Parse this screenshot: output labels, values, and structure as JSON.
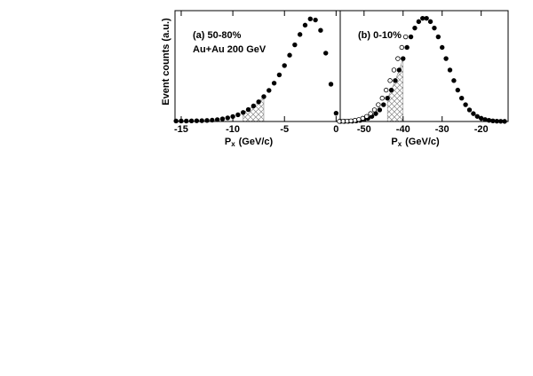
{
  "chart_data": [
    {
      "type": "scatter",
      "y_label": "Event counts (a.u.)",
      "annotations": [
        "(a) 50-80%",
        "Au+Au 200 GeV"
      ],
      "x_label": "P",
      "x_label_sub": "x",
      "x_label_unit": "(GeV/c)",
      "xlim": [
        -15.6,
        0.4
      ],
      "xticks": [
        -15,
        -10,
        -5,
        0
      ],
      "ylim": [
        0,
        1.07
      ],
      "shaded_xrange": [
        -9,
        -7
      ],
      "x": [
        -15.5,
        -15,
        -14.5,
        -14,
        -13.5,
        -13,
        -12.5,
        -12,
        -11.5,
        -11,
        -10.5,
        -10,
        -9.5,
        -9,
        -8.5,
        -8,
        -7.5,
        -7,
        -6.5,
        -6,
        -5.5,
        -5,
        -4.5,
        -4,
        -3.5,
        -3,
        -2.5,
        -2,
        -1.5,
        -1,
        -0.5,
        0
      ],
      "series": [
        {
          "color": "#000000",
          "marker": "filled",
          "values": [
            0.005,
            0.005,
            0.005,
            0.006,
            0.007,
            0.008,
            0.01,
            0.013,
            0.018,
            0.025,
            0.035,
            0.048,
            0.065,
            0.087,
            0.115,
            0.15,
            0.19,
            0.24,
            0.3,
            0.37,
            0.45,
            0.54,
            0.64,
            0.74,
            0.84,
            0.93,
            0.99,
            0.98,
            0.88,
            0.66,
            0.36,
            0.08
          ]
        }
      ]
    },
    {
      "type": "scatter",
      "annotations": [
        "(b) 0-10%"
      ],
      "x_label": "P",
      "x_label_sub": "x",
      "x_label_unit": "(GeV/c)",
      "xlim": [
        -56.1,
        -13.1
      ],
      "xticks": [
        -50,
        -40,
        -30,
        -20
      ],
      "ylim": [
        0,
        1.07
      ],
      "shaded_xrange": [
        -44,
        -40
      ],
      "x": [
        -56,
        -55,
        -54,
        -53,
        -52,
        -51,
        -50,
        -49,
        -48,
        -47,
        -46,
        -45,
        -44,
        -43,
        -42,
        -41,
        -40,
        -39,
        -38,
        -37,
        -36,
        -35,
        -34,
        -33,
        -32,
        -31,
        -30,
        -29,
        -28,
        -27,
        -26,
        -25,
        -24,
        -23,
        -22,
        -21,
        -20,
        -19,
        -18,
        -17,
        -16,
        -15,
        -14
      ],
      "series": [
        {
          "color": "#000000",
          "marker": "filled",
          "values": [
            0.001,
            0.001,
            0.002,
            0.003,
            0.006,
            0.011,
            0.019,
            0.031,
            0.049,
            0.076,
            0.112,
            0.162,
            0.225,
            0.303,
            0.395,
            0.497,
            0.607,
            0.715,
            0.817,
            0.902,
            0.964,
            0.996,
            0.996,
            0.964,
            0.902,
            0.817,
            0.715,
            0.607,
            0.497,
            0.395,
            0.303,
            0.225,
            0.162,
            0.112,
            0.076,
            0.049,
            0.031,
            0.019,
            0.011,
            0.006,
            0.003,
            0.002,
            0.001
          ]
        },
        {
          "color": "#000000",
          "marker": "open",
          "values": [
            0.001,
            0.002,
            0.003,
            0.006,
            0.011,
            0.019,
            0.031,
            0.049,
            0.076,
            0.112,
            0.162,
            0.225,
            0.303,
            0.395,
            0.497,
            0.607,
            0.715,
            0.817,
            null,
            null,
            null,
            null,
            null,
            null,
            null,
            null,
            null,
            null,
            null,
            null,
            null,
            null,
            null,
            null,
            null,
            null,
            null,
            null,
            null,
            null,
            null,
            null,
            null
          ]
        }
      ]
    }
  ]
}
